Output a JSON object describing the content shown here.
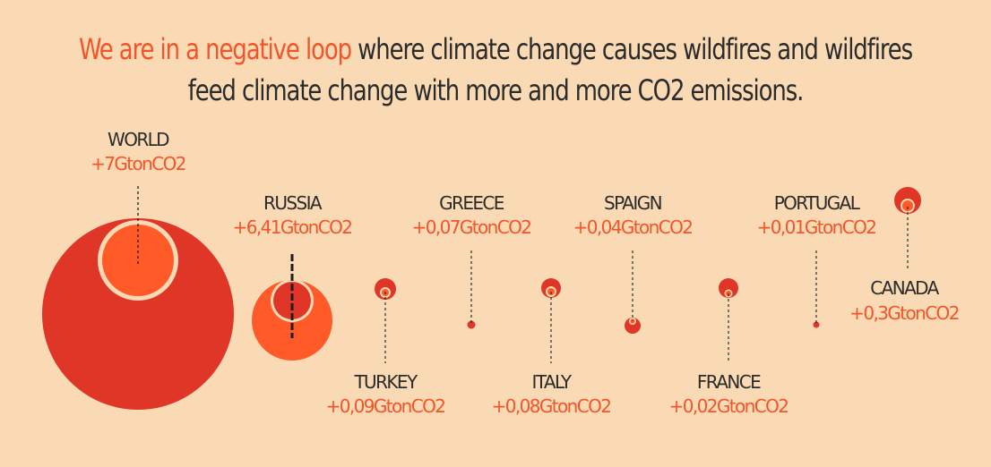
{
  "headline": {
    "highlight": "We are in a negative loop",
    "rest_line1": " where climate change causes wildfires and wildfires",
    "line2": "feed climate change with more and more CO2 emissions."
  },
  "colors": {
    "background": "#FADAB4",
    "outer_circle": "#DF3627",
    "inner_circle": "#FF5A28",
    "ring": "#FADAB4",
    "name_text": "#2B2B2B",
    "value_text": "#F2552A"
  },
  "chart_data": {
    "type": "bubble",
    "unit": "GtonCO2",
    "series": [
      {
        "name": "WORLD",
        "label": "+7GtonCO2",
        "value": 7.0
      },
      {
        "name": "RUSSIA",
        "label": "+6,41GtonCO2",
        "value": 6.41
      },
      {
        "name": "TURKEY",
        "label": "+0,09GtonCO2",
        "value": 0.09
      },
      {
        "name": "GREECE",
        "label": "+0,07GtonCO2",
        "value": 0.07
      },
      {
        "name": "ITALY",
        "label": "+0,08GtonCO2",
        "value": 0.08
      },
      {
        "name": "SPAIGN",
        "label": "+0,04GtonCO2",
        "value": 0.04
      },
      {
        "name": "FRANCE",
        "label": "+0,02GtonCO2",
        "value": 0.02
      },
      {
        "name": "PORTUGAL",
        "label": "+0,01GtonCO2",
        "value": 0.01
      },
      {
        "name": "CANADA",
        "label": "+0,3GtonCO2",
        "value": 0.3
      }
    ]
  }
}
